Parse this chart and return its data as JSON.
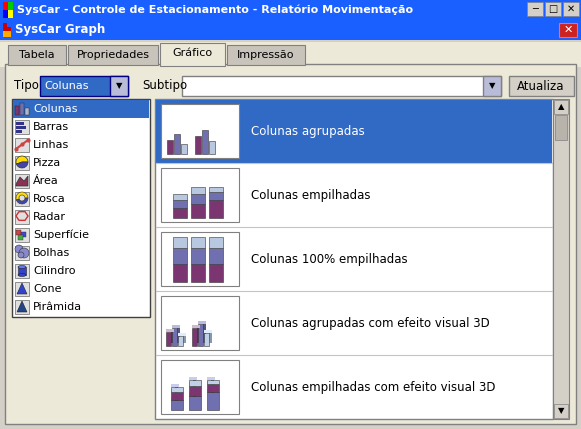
{
  "title_bar": "SysCar - Controle de Estacionamento - Relatório Movimentação",
  "title_bar_bg": "#1a5fff",
  "dialog_title": "SysCar Graph",
  "dialog_title_bg": "#1a5fff",
  "tabs": [
    "Tabela",
    "Propriedades",
    "Gráfico",
    "Impressão"
  ],
  "active_tab": "Gráfico",
  "tipo_label": "Tipo",
  "tipo_value": "Colunas",
  "subtipo_label": "Subtipo",
  "atualiza_btn": "Atualiza",
  "dropdown_items": [
    "Colunas",
    "Barras",
    "Linhas",
    "Pizza",
    "Área",
    "Rosca",
    "Radar",
    "Superfície",
    "Bolhas",
    "Cilindro",
    "Cone",
    "Pirâmida"
  ],
  "chart_options": [
    "Colunas agrupadas",
    "Colunas empilhadas",
    "Colunas 100% empilhadas",
    "Colunas agrupadas com efeito visual 3D",
    "Colunas empilhadas com efeito visual 3D"
  ],
  "selected_option": 0,
  "window_bg": "#d4d0c8",
  "panel_bg": "#ffffff",
  "selected_bg": "#316ac5",
  "tab_bg": "#ece9d8",
  "border_dark": "#808080",
  "border_light": "#ffffff",
  "scrollbar_bg": "#d4d0c8"
}
